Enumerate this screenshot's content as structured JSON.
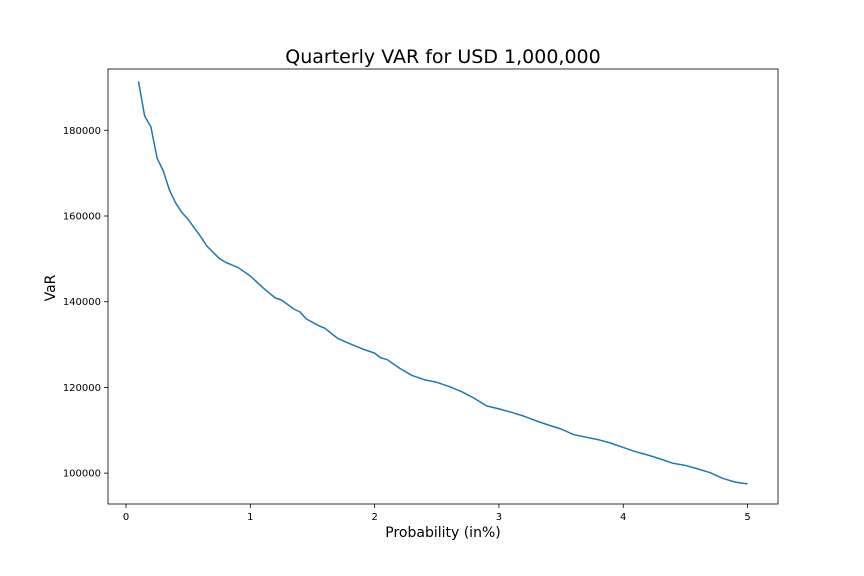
{
  "chart_data": {
    "type": "line",
    "title": "Quarterly VAR for USD 1,000,000",
    "xlabel": "Probability (in%)",
    "ylabel": "VaR",
    "xlim": [
      -0.145,
      5.245
    ],
    "ylim": [
      92800,
      194300
    ],
    "xticks": [
      0,
      1,
      2,
      3,
      4,
      5
    ],
    "xtick_labels": [
      "0",
      "1",
      "2",
      "3",
      "4",
      "5"
    ],
    "yticks": [
      100000,
      120000,
      140000,
      160000,
      180000
    ],
    "ytick_labels": [
      "100000",
      "120000",
      "140000",
      "160000",
      "180000"
    ],
    "grid": false,
    "legend": "none",
    "line_color": "#1f77b4",
    "series": [
      {
        "x": [
          0.1,
          0.15,
          0.2,
          0.25,
          0.3,
          0.35,
          0.4,
          0.45,
          0.5,
          0.6,
          0.65,
          0.75,
          0.8,
          0.9,
          1.0,
          1.1,
          1.2,
          1.25,
          1.35,
          1.4,
          1.45,
          1.55,
          1.6,
          1.7,
          1.8,
          1.9,
          2.0,
          2.05,
          2.1,
          2.2,
          2.3,
          2.4,
          2.5,
          2.6,
          2.7,
          2.8,
          2.9,
          3.0,
          3.1,
          3.2,
          3.3,
          3.4,
          3.5,
          3.6,
          3.8,
          3.9,
          4.0,
          4.1,
          4.2,
          4.3,
          4.4,
          4.5,
          4.6,
          4.7,
          4.8,
          4.9,
          5.0
        ],
        "y": [
          191400,
          183300,
          180800,
          173500,
          170500,
          166000,
          163000,
          160800,
          159200,
          155200,
          153000,
          150100,
          149200,
          148000,
          146000,
          143300,
          140900,
          140400,
          138300,
          137600,
          136000,
          134400,
          133800,
          131500,
          130200,
          129000,
          128000,
          126900,
          126500,
          124500,
          122800,
          121800,
          121200,
          120200,
          119000,
          117500,
          115700,
          115000,
          114200,
          113300,
          112200,
          111200,
          110300,
          109000,
          107800,
          107000,
          106000,
          105000,
          104200,
          103300,
          102300,
          101800,
          101000,
          100100,
          98800,
          97900,
          97500
        ]
      }
    ]
  }
}
